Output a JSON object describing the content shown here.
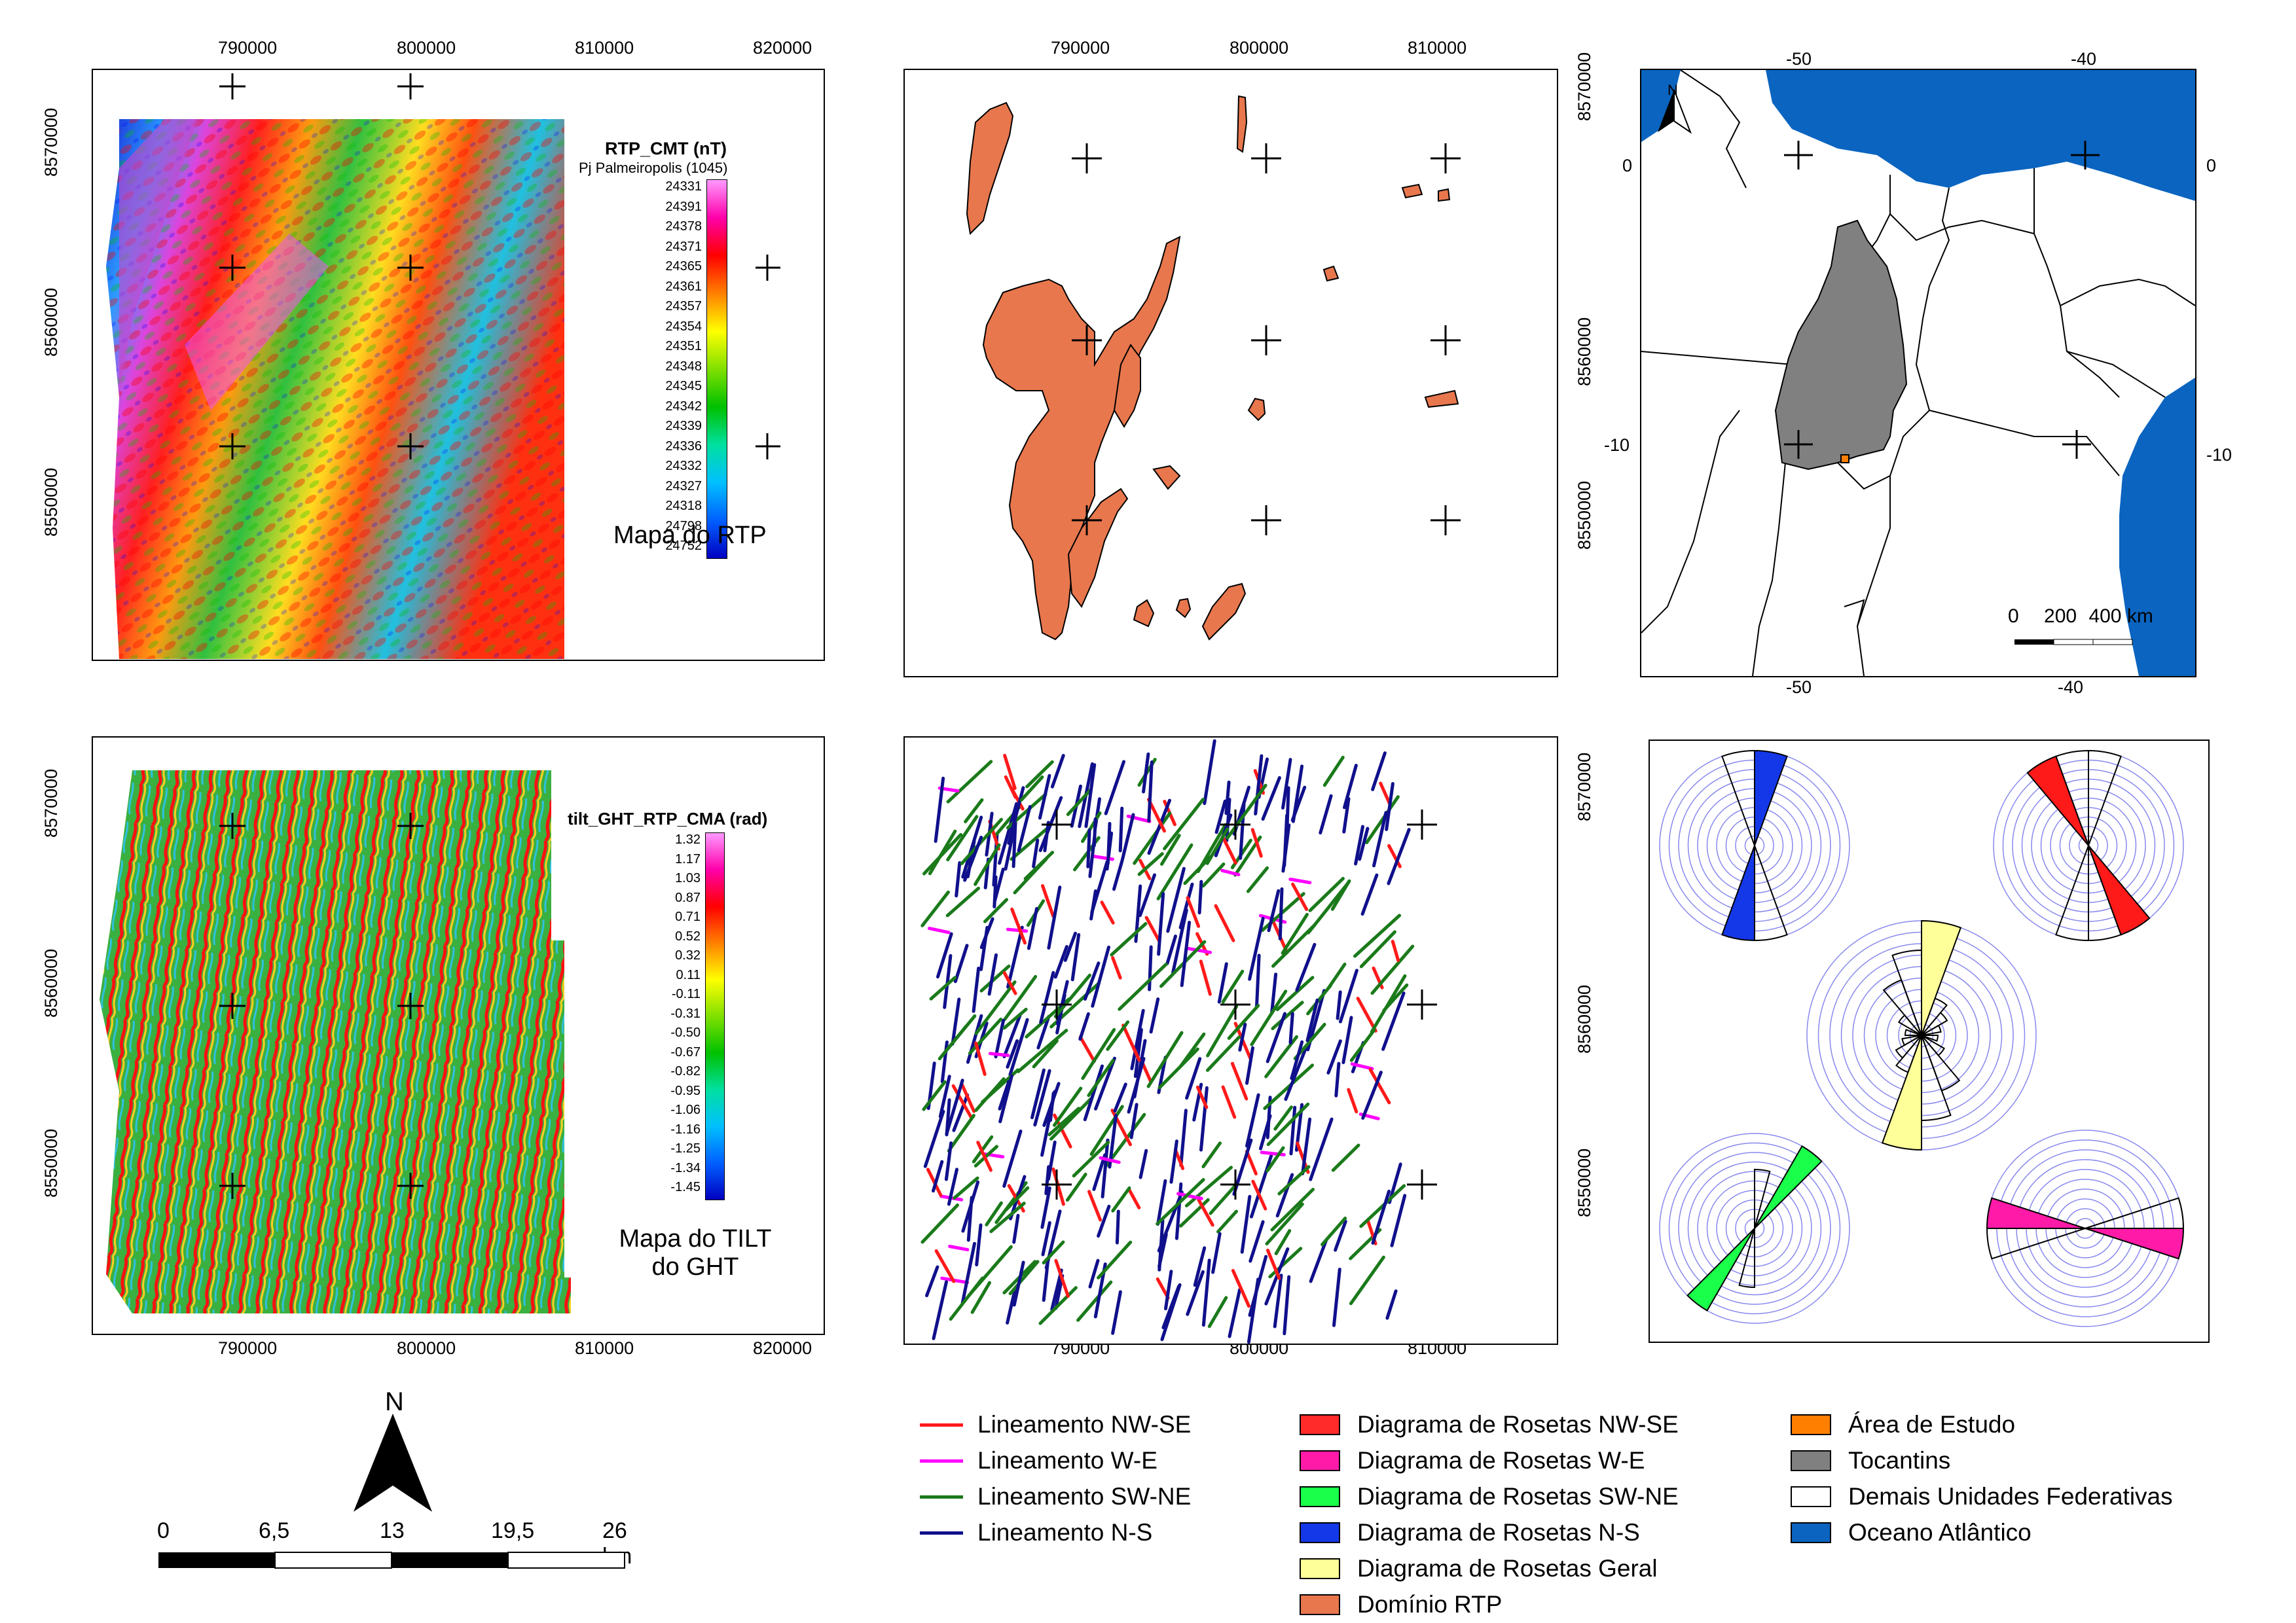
{
  "rtp_map": {
    "x_ticks": [
      "790000",
      "800000",
      "810000",
      "820000"
    ],
    "y_ticks": [
      "8570000",
      "8560000",
      "8550000"
    ],
    "colorbar_title": "RTP_CMT (nT)",
    "colorbar_subtitle": "Pj Palmeiropolis (1045)",
    "colorbar_values": [
      "24331",
      "24391",
      "24378",
      "24371",
      "24365",
      "24361",
      "24357",
      "24354",
      "24351",
      "24348",
      "24345",
      "24342",
      "24339",
      "24336",
      "24332",
      "24327",
      "24318",
      "24798",
      "24752"
    ],
    "caption": "Mapa do RTP"
  },
  "tilt_map": {
    "x_ticks": [
      "790000",
      "800000",
      "810000",
      "820000"
    ],
    "y_ticks": [
      "8570000",
      "8560000",
      "8550000"
    ],
    "colorbar_title": "tilt_GHT_RTP_CMA (rad)",
    "colorbar_values": [
      "1.32",
      "1.17",
      "1.03",
      "0.87",
      "0.71",
      "0.52",
      "0.32",
      "0.11",
      "-0.11",
      "-0.31",
      "-0.50",
      "-0.67",
      "-0.82",
      "-0.95",
      "-1.06",
      "-1.16",
      "-1.25",
      "-1.34",
      "-1.45"
    ],
    "caption_line1": "Mapa do TILT",
    "caption_line2": "do GHT"
  },
  "domain_map": {
    "x_ticks": [
      "790000",
      "800000",
      "810000"
    ],
    "y_ticks": [
      "8570000",
      "8560000",
      "8550000"
    ],
    "polygon_color": "#e8774d"
  },
  "lineament_map": {
    "x_ticks": [
      "790000",
      "800000",
      "810000"
    ],
    "y_ticks": [
      "8570000",
      "8560000",
      "8550000"
    ],
    "colors": {
      "nw_se": "#ff1a1a",
      "w_e": "#ff00ff",
      "sw_ne": "#1a7a1a",
      "n_s": "#10108c"
    }
  },
  "location_map": {
    "top_ticks": [
      "-50",
      "-40"
    ],
    "bottom_ticks": [
      "-50",
      "-40"
    ],
    "left_ticks": [
      "0",
      "-10"
    ],
    "right_ticks": [
      "0",
      "-10"
    ],
    "north_label": "N",
    "scale_labels": [
      "0",
      "200",
      "400 km"
    ],
    "ocean_color": "#0a64c0",
    "tocantins_color": "#808080",
    "study_area_color": "#ff7f00"
  },
  "rose_diagrams": {
    "colors": {
      "n_s": "#1438e8",
      "nw_se": "#ff1a1a",
      "geral": "#ffff99",
      "sw_ne": "#1aff4a",
      "w_e": "#ff1aa8"
    },
    "ring_color": "#8888ee"
  },
  "scale_bar": {
    "north_label": "N",
    "labels": [
      "0",
      "6,5",
      "13",
      "19,5",
      "26 km"
    ]
  },
  "legend": {
    "col1": [
      {
        "label": "Lineamento NW-SE",
        "color": "#ff1a1a"
      },
      {
        "label": "Lineamento W-E",
        "color": "#ff00ff"
      },
      {
        "label": "Lineamento SW-NE",
        "color": "#1a7a1a"
      },
      {
        "label": "Lineamento N-S",
        "color": "#10108c"
      }
    ],
    "col2": [
      {
        "label": "Diagrama de Rosetas NW-SE",
        "color": "#ff2a2a"
      },
      {
        "label": "Diagrama de Rosetas W-E",
        "color": "#ff1aa8"
      },
      {
        "label": "Diagrama de Rosetas SW-NE",
        "color": "#1aff4a"
      },
      {
        "label": "Diagrama de Rosetas N-S",
        "color": "#1438e8"
      },
      {
        "label": "Diagrama de Rosetas Geral",
        "color": "#ffff99"
      },
      {
        "label": "Domínio RTP",
        "color": "#e8774d"
      }
    ],
    "col3": [
      {
        "label": "Área de Estudo",
        "color": "#ff7f00"
      },
      {
        "label": "Tocantins",
        "color": "#808080"
      },
      {
        "label": "Demais Unidades Federativas",
        "color": "#ffffff"
      },
      {
        "label": "Oceano Atlântico",
        "color": "#0a64c0"
      }
    ]
  }
}
